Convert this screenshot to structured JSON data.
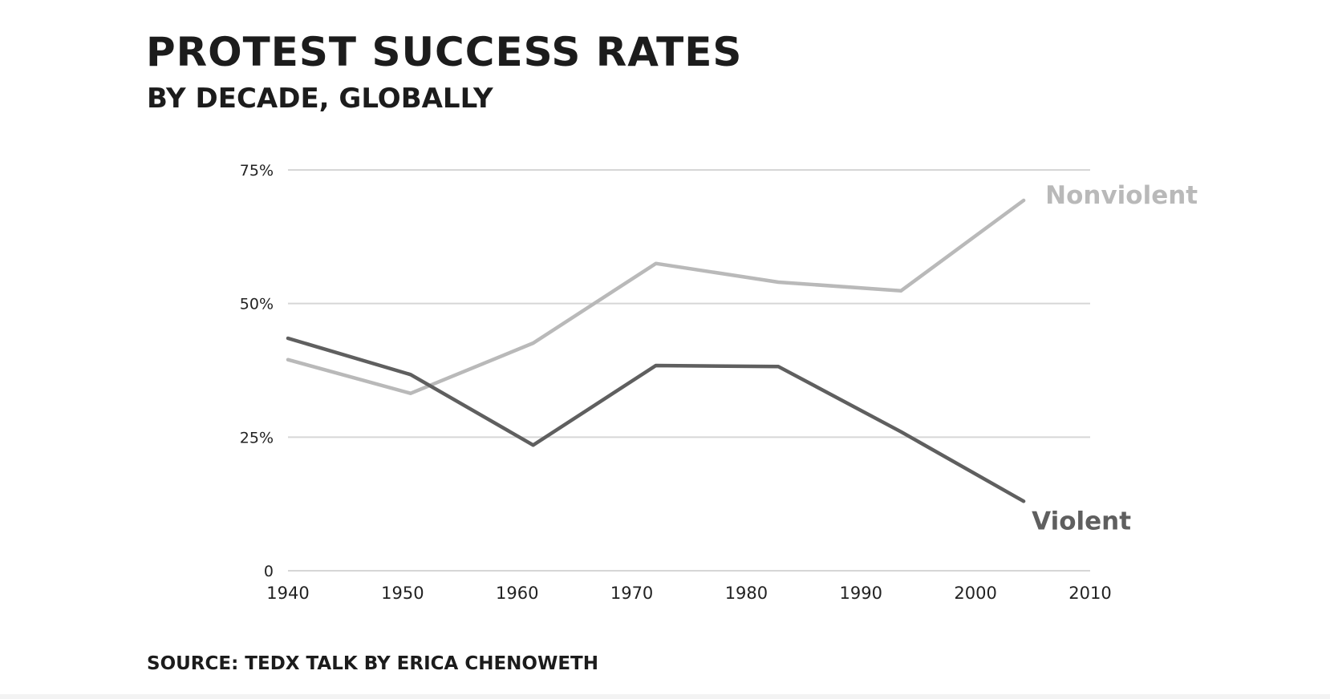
{
  "header": {
    "title": "PROTEST SUCCESS RATES",
    "subtitle": "BY DECADE, GLOBALLY"
  },
  "footer": {
    "source": "SOURCE: TEDX TALK BY ERICA CHENOWETH"
  },
  "colors": {
    "nonviolent": "#b9b9b9",
    "violent": "#5f5f5f",
    "grid": "#d6d6d6",
    "text": "#1c1c1c"
  },
  "chart_data": {
    "type": "line",
    "title": "PROTEST SUCCESS RATES",
    "subtitle": "BY DECADE, GLOBALLY",
    "xlabel": "",
    "ylabel": "",
    "xlim": [
      1940,
      2010
    ],
    "ylim": [
      0,
      75
    ],
    "x_ticks": [
      1940,
      1950,
      1960,
      1970,
      1980,
      1990,
      2000,
      2010
    ],
    "x_tick_labels": [
      "1940",
      "1950",
      "1960",
      "1970",
      "1980",
      "1990",
      "2000",
      "2010"
    ],
    "y_ticks": [
      0,
      25,
      50,
      75
    ],
    "y_tick_labels": [
      "0",
      "25%",
      "50%",
      "75%"
    ],
    "grid": true,
    "legend": "direct labels at line ends",
    "series": [
      {
        "name": "Nonviolent",
        "color": "#b9b9b9",
        "x": [
          1940,
          1950.7,
          1961.4,
          1972.1,
          1982.8,
          1993.5,
          2004.2
        ],
        "y": [
          39.5,
          33.2,
          42.6,
          57.5,
          54.0,
          52.4,
          69.3
        ]
      },
      {
        "name": "Violent",
        "color": "#5f5f5f",
        "x": [
          1940,
          1950.7,
          1961.4,
          1972.1,
          1982.8,
          1993.5,
          2004.2
        ],
        "y": [
          43.5,
          36.7,
          23.5,
          38.4,
          38.2,
          26.0,
          13.0
        ]
      }
    ]
  }
}
